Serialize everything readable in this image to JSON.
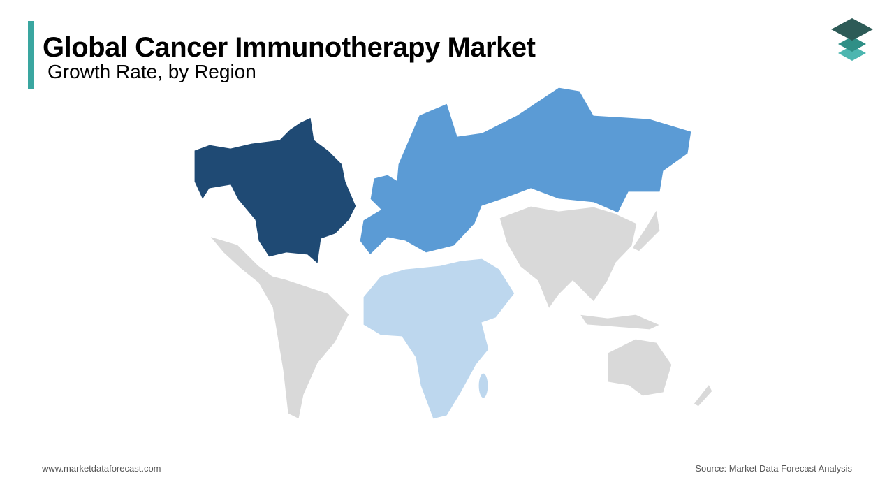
{
  "header": {
    "title": "Global Cancer Immunotherapy Market",
    "subtitle": "Growth Rate, by Region"
  },
  "footer": {
    "website": "www.marketdataforecast.com",
    "source": "Source: Market Data Forecast Analysis"
  }
}
